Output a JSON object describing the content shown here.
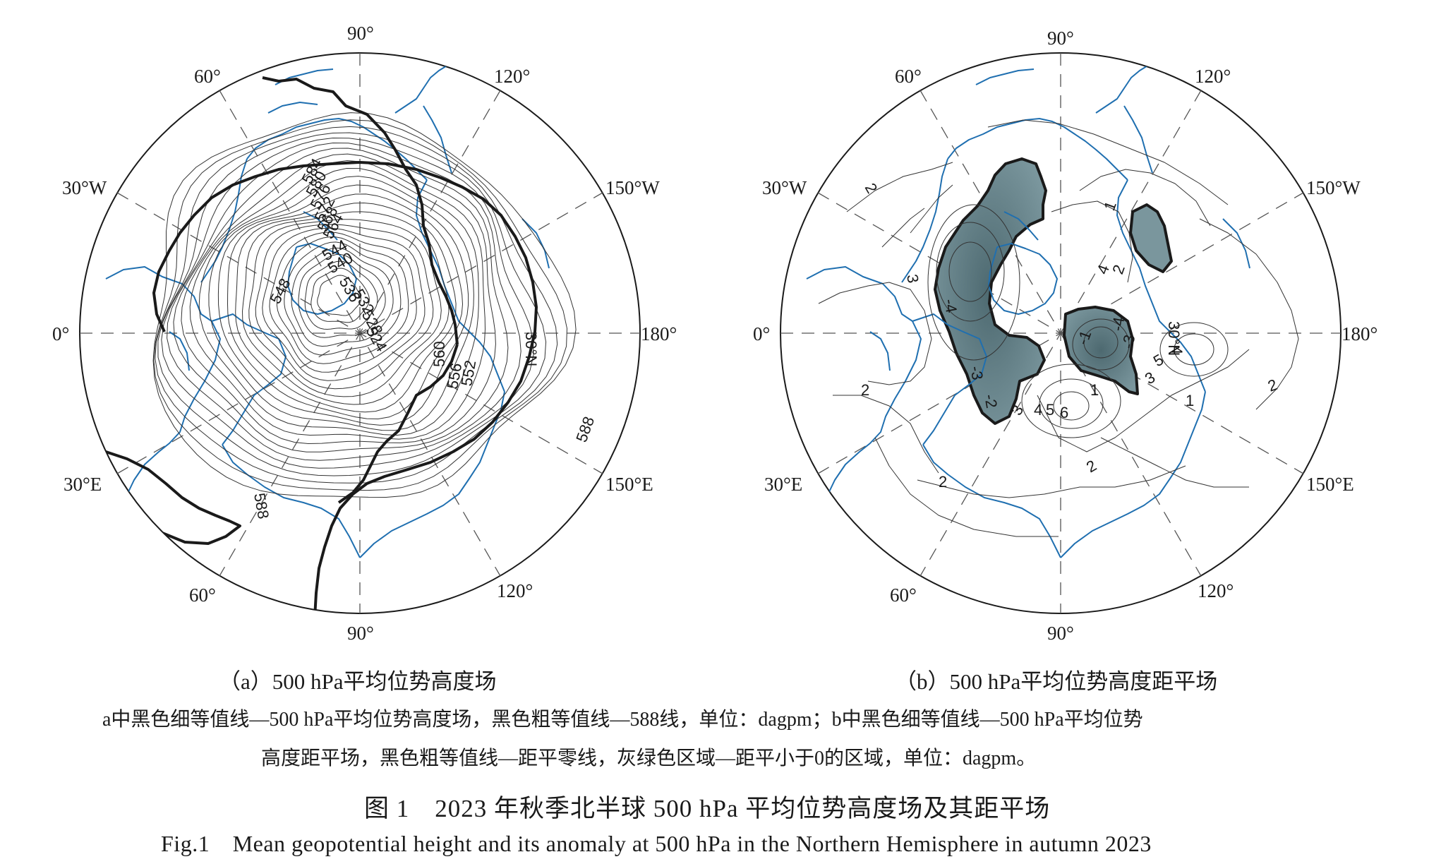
{
  "panel_a": {
    "lon_labels": {
      "top": "90°",
      "top_left": "60°",
      "top_right": "120°",
      "upper_left": "30°W",
      "upper_right": "150°W",
      "left": "0°",
      "right": "180°",
      "lower_left": "30°E",
      "lower_right": "150°E",
      "bottom_left": "60°",
      "bottom_right": "120°",
      "bottom": "90°"
    },
    "contour_labels": [
      "584",
      "580",
      "576",
      "572",
      "568",
      "564",
      "548",
      "544",
      "540",
      "536",
      "532",
      "528",
      "524",
      "560",
      "556",
      "552",
      "588",
      "588",
      "30°N"
    ],
    "caption": "（a）500 hPa平均位势高度场"
  },
  "panel_b": {
    "lon_labels": {
      "top": "90°",
      "top_left": "60°",
      "top_right": "120°",
      "upper_left": "30°W",
      "upper_right": "150°W",
      "left": "0°",
      "right": "180°",
      "lower_left": "30°E",
      "lower_right": "150°E",
      "bottom_left": "60°",
      "bottom_right": "120°",
      "bottom": "90°"
    },
    "contour_labels": [
      "2",
      "2",
      "3",
      "-4",
      "-3",
      "-2",
      "1",
      "2",
      "4",
      "-4",
      "-3",
      "1",
      "3",
      "4",
      "5",
      "6",
      "2",
      "1",
      "2",
      "2",
      "4",
      "5",
      "3",
      "-1",
      "30°N"
    ],
    "caption": "（b）500 hPa平均位势高度距平场"
  },
  "note_line1": "a中黑色细等值线—500 hPa平均位势高度场，黑色粗等值线—588线，单位：dagpm；b中黑色细等值线—500 hPa平均位势",
  "note_line2": "高度距平场，黑色粗等值线—距平零线，灰绿色区域—距平小于0的区域，单位：dagpm。",
  "figure_title_zh": "图 1　2023 年秋季北半球 500 hPa 平均位势高度场及其距平场",
  "figure_title_en": "Fig.1　Mean geopotential height and its anomaly at 500 hPa in the Northern Hemisphere in autumn 2023",
  "colors": {
    "coast": "#1f6fb0",
    "negative_fill": "#6b8890",
    "negative_fill_dark": "#4d6970",
    "line": "#1a1a1a"
  }
}
